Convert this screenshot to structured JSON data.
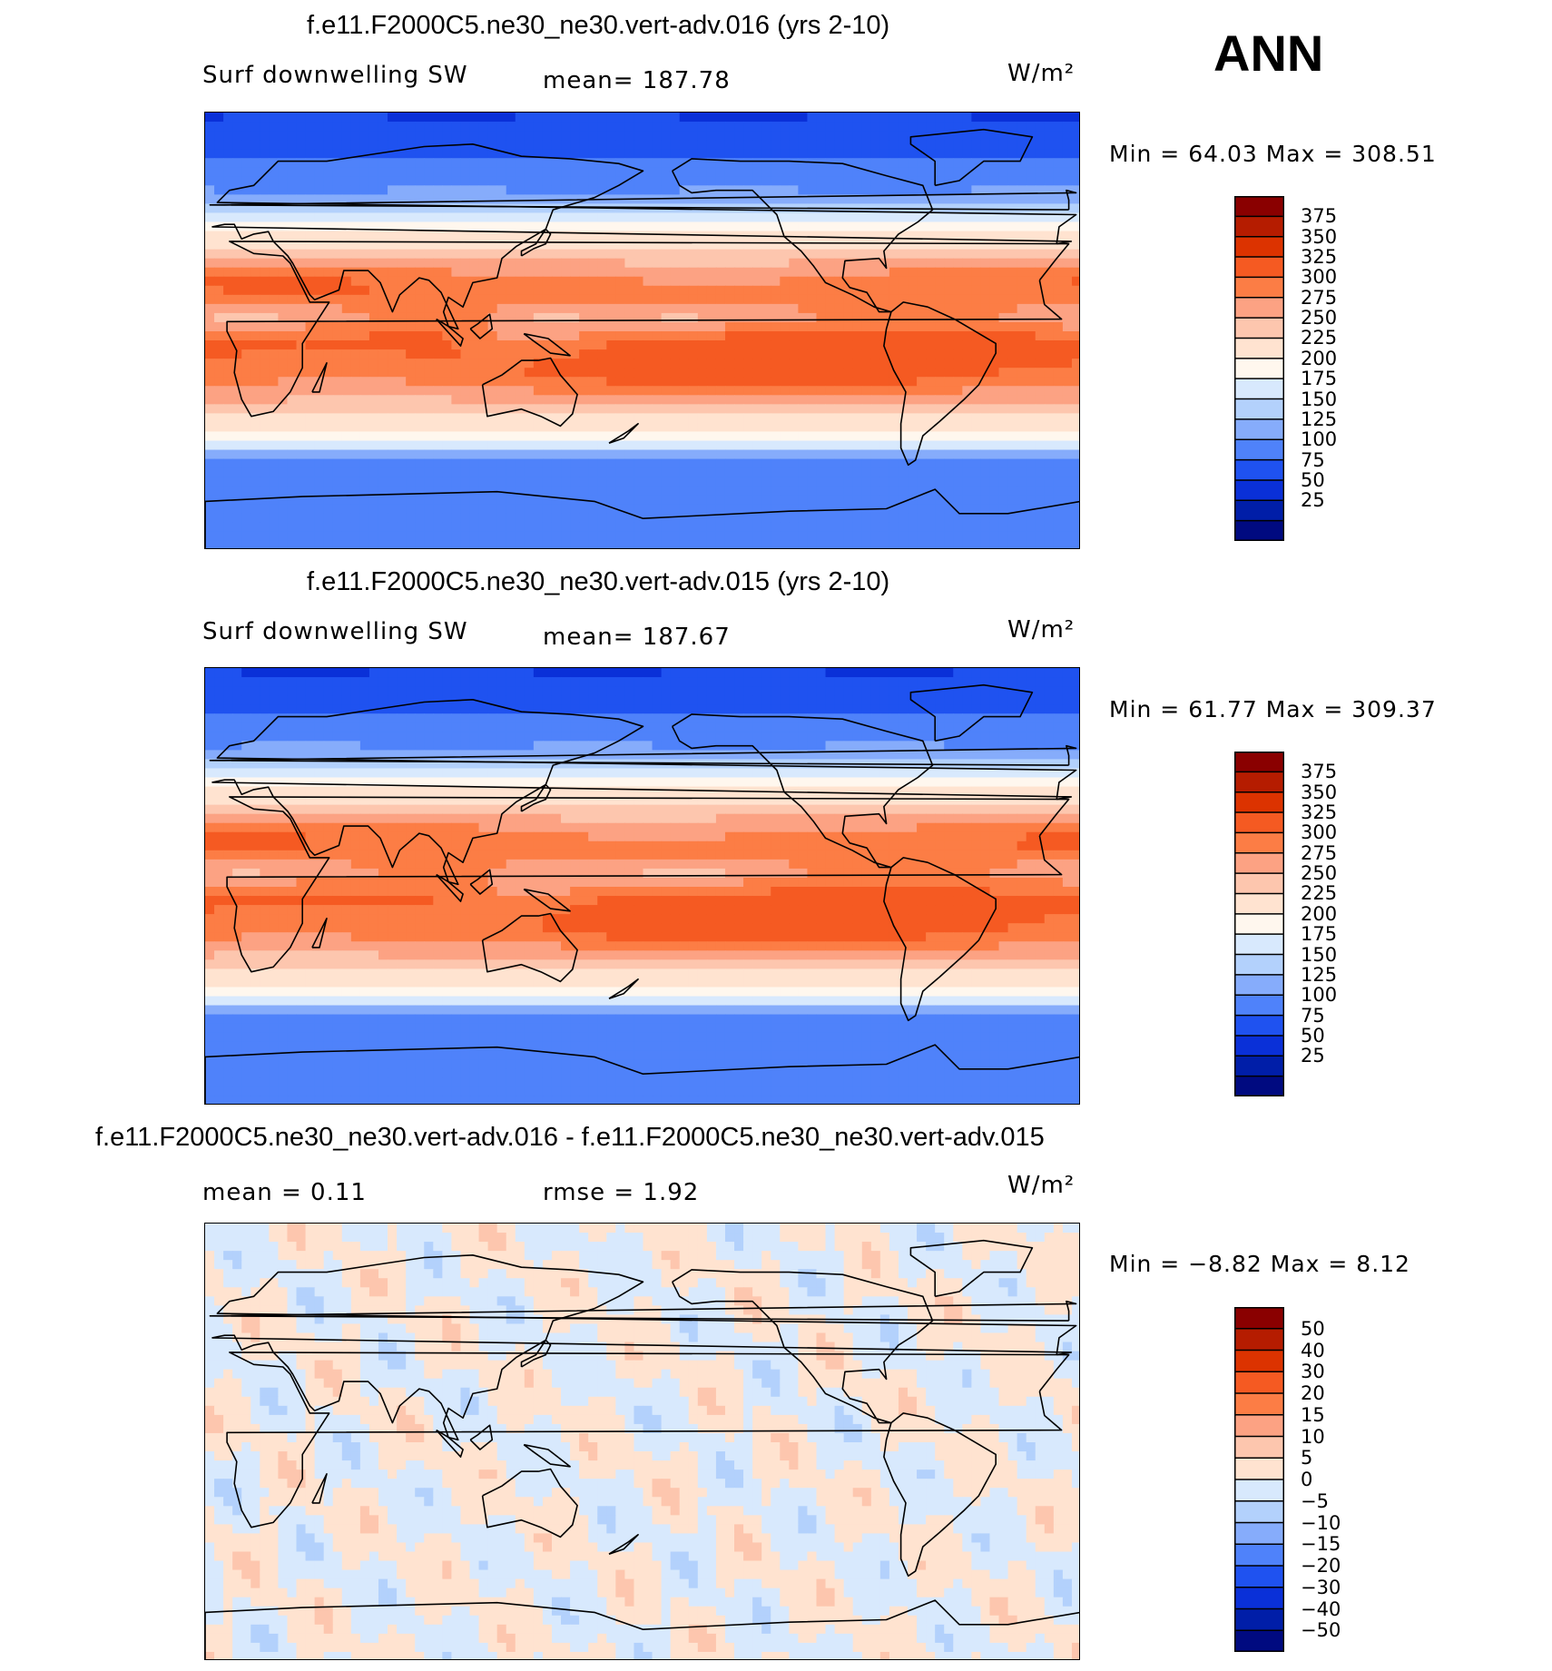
{
  "season": "ANN",
  "units": "W/m²",
  "panels": [
    {
      "title": "f.e11.F2000C5.ne30_ne30.vert-adv.016 (yrs 2-10)",
      "left_label": "Surf downwelling SW",
      "center_label": "mean= 187.78",
      "min_max": "Min =   64.03 Max = 308.51",
      "type": "absolute"
    },
    {
      "title": "f.e11.F2000C5.ne30_ne30.vert-adv.015 (yrs 2-10)",
      "left_label": "Surf downwelling SW",
      "center_label": "mean= 187.67",
      "min_max": "Min =   61.77 Max = 309.37",
      "type": "absolute"
    },
    {
      "title": "f.e11.F2000C5.ne30_ne30.vert-adv.016 - f.e11.F2000C5.ne30_ne30.vert-adv.015",
      "left_label": "mean =    0.11",
      "center_label": "rmse =    1.92",
      "min_max": "Min =  −8.82 Max =    8.12",
      "type": "difference"
    }
  ],
  "colorbar_abs": {
    "ticks": [
      "375",
      "350",
      "325",
      "300",
      "275",
      "250",
      "225",
      "200",
      "175",
      "150",
      "125",
      "100",
      "75",
      "50",
      "25"
    ],
    "colors": [
      "#8a0000",
      "#b51c00",
      "#dc3300",
      "#f55a22",
      "#fc7d45",
      "#fca283",
      "#fdc6ae",
      "#ffe3d0",
      "#fff7ee",
      "#d8e9fd",
      "#b3d1fc",
      "#86acfb",
      "#4f82fa",
      "#1f52f0",
      "#0a30d8",
      "#001ea8",
      "#000a80"
    ]
  },
  "colorbar_diff": {
    "ticks": [
      "50",
      "40",
      "30",
      "20",
      "15",
      "10",
      "5",
      "0",
      "−5",
      "−10",
      "−15",
      "−20",
      "−30",
      "−40",
      "−50"
    ],
    "colors": [
      "#8a0000",
      "#b51c00",
      "#dc3300",
      "#f55a22",
      "#fc7d45",
      "#fca283",
      "#fdc6ae",
      "#ffe3d0",
      "#d8e9fd",
      "#b3d1fc",
      "#86acfb",
      "#4f82fa",
      "#1f52f0",
      "#0a30d8",
      "#001ea8",
      "#000a80"
    ]
  }
}
